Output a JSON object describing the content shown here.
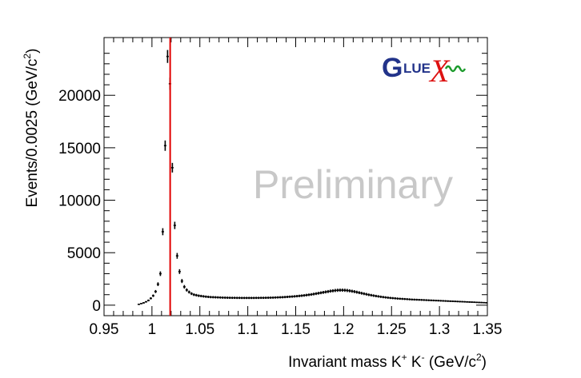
{
  "chart_data": {
    "type": "scatter",
    "title": "",
    "xlabel": {
      "prefix": "Invariant mass K",
      "sup1": "+",
      "mid": " K",
      "sup2": "-",
      "suffix": " (GeV/c",
      "sup3": "2",
      "end": ")"
    },
    "ylabel": {
      "prefix": "Events/0.0025 (GeV/c",
      "sup": "2",
      "end": ")"
    },
    "xlim": [
      0.95,
      1.35
    ],
    "ylim": [
      -1000,
      25500
    ],
    "x_ticks": [
      "0.95",
      "1",
      "1.05",
      "1.1",
      "1.15",
      "1.2",
      "1.25",
      "1.3",
      "1.35"
    ],
    "y_ticks": [
      "0",
      "5000",
      "10000",
      "15000",
      "20000"
    ],
    "grid": false,
    "vertical_line": {
      "x": 1.019,
      "color": "#e00000"
    },
    "watermark": "Preliminary",
    "logo": {
      "text": "GlueX"
    },
    "series": [
      {
        "marker_color": "#000000",
        "x": [
          0.9863,
          0.9888,
          0.9913,
          0.9938,
          0.9963,
          0.9988,
          1.0013,
          1.0038,
          1.0063,
          1.0088,
          1.0113,
          1.0138,
          1.0163,
          1.0188,
          1.0213,
          1.0238,
          1.0263,
          1.0288,
          1.0313,
          1.0338,
          1.0363,
          1.0388,
          1.0413,
          1.0438,
          1.0463,
          1.0488,
          1.0513,
          1.0538,
          1.0563,
          1.0588,
          1.0613,
          1.0638,
          1.0663,
          1.0688,
          1.0713,
          1.0738,
          1.0763,
          1.0788,
          1.0813,
          1.0838,
          1.0863,
          1.0888,
          1.0913,
          1.0938,
          1.0963,
          1.0988,
          1.1013,
          1.1038,
          1.1063,
          1.1088,
          1.1113,
          1.1138,
          1.1163,
          1.1188,
          1.1213,
          1.1238,
          1.1263,
          1.1288,
          1.1313,
          1.1338,
          1.1363,
          1.1388,
          1.1413,
          1.1438,
          1.1463,
          1.1488,
          1.1513,
          1.1538,
          1.1563,
          1.1588,
          1.1613,
          1.1638,
          1.1663,
          1.1688,
          1.1713,
          1.1738,
          1.1763,
          1.1788,
          1.1813,
          1.1838,
          1.1863,
          1.1888,
          1.1913,
          1.1938,
          1.1963,
          1.1988,
          1.2013,
          1.2038,
          1.2063,
          1.2088,
          1.2113,
          1.2138,
          1.2163,
          1.2188,
          1.2213,
          1.2238,
          1.2263,
          1.2288,
          1.2313,
          1.2338,
          1.2363,
          1.2388,
          1.2413,
          1.2438,
          1.2463,
          1.2488,
          1.2513,
          1.2538,
          1.2563,
          1.2588,
          1.2613,
          1.2638,
          1.2663,
          1.2688,
          1.2713,
          1.2738,
          1.2763,
          1.2788,
          1.2813,
          1.2838,
          1.2863,
          1.2888,
          1.2913,
          1.2938,
          1.2963,
          1.2988,
          1.3013,
          1.3038,
          1.3063,
          1.3088,
          1.3113,
          1.3138,
          1.3163,
          1.3188,
          1.3213,
          1.3238,
          1.3263,
          1.3288,
          1.3313,
          1.3338,
          1.3363,
          1.3388,
          1.3413,
          1.3438,
          1.3463,
          1.3488
        ],
        "y": [
          80,
          150,
          220,
          320,
          450,
          650,
          900,
          1300,
          2000,
          3000,
          7000,
          15200,
          23700,
          21100,
          13100,
          7600,
          4700,
          3200,
          2300,
          1750,
          1450,
          1250,
          1100,
          1000,
          950,
          900,
          870,
          840,
          810,
          790,
          770,
          760,
          750,
          740,
          730,
          720,
          715,
          710,
          705,
          700,
          700,
          695,
          695,
          690,
          690,
          690,
          690,
          690,
          690,
          695,
          695,
          700,
          700,
          705,
          710,
          715,
          720,
          730,
          740,
          750,
          760,
          775,
          790,
          805,
          820,
          840,
          860,
          880,
          905,
          930,
          960,
          990,
          1020,
          1060,
          1100,
          1140,
          1180,
          1220,
          1260,
          1300,
          1340,
          1370,
          1400,
          1420,
          1430,
          1430,
          1420,
          1400,
          1370,
          1330,
          1290,
          1240,
          1190,
          1140,
          1090,
          1040,
          990,
          950,
          910,
          870,
          835,
          800,
          770,
          740,
          715,
          690,
          670,
          650,
          630,
          615,
          600,
          585,
          570,
          555,
          540,
          530,
          520,
          510,
          500,
          490,
          480,
          470,
          460,
          450,
          440,
          430,
          420,
          410,
          400,
          390,
          380,
          370,
          360,
          350,
          340,
          330,
          320,
          310,
          300,
          290,
          280,
          270,
          260,
          250,
          240,
          230
        ]
      }
    ]
  }
}
